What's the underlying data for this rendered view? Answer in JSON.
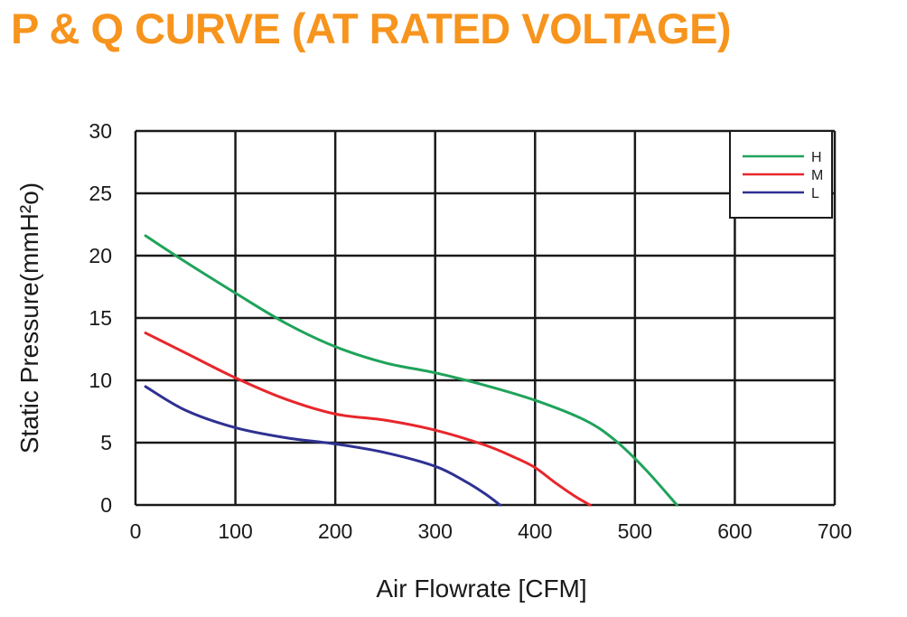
{
  "title": "P & Q CURVE (AT RATED VOLTAGE)",
  "colors": {
    "title": "#f7941d",
    "H": "#1fa35a",
    "M": "#e8262b",
    "L": "#2e3192"
  },
  "chart_data": {
    "type": "line",
    "xlabel": "Air Flowrate [CFM]",
    "ylabel": "Static Pressure(mmH²o)",
    "xlim": [
      0,
      700
    ],
    "ylim": [
      0,
      30
    ],
    "xticks": [
      0,
      100,
      200,
      300,
      400,
      500,
      600,
      700
    ],
    "yticks": [
      0,
      5,
      10,
      15,
      20,
      25,
      30
    ],
    "grid": true,
    "legend_position": "top-right",
    "series": [
      {
        "name": "H",
        "color": "#1fa35a",
        "x": [
          10,
          50,
          100,
          150,
          200,
          250,
          300,
          350,
          400,
          450,
          480,
          510,
          542
        ],
        "y": [
          21.6,
          19.5,
          17.0,
          14.6,
          12.7,
          11.4,
          10.6,
          9.6,
          8.4,
          6.8,
          5.2,
          2.9,
          0
        ]
      },
      {
        "name": "M",
        "color": "#e8262b",
        "x": [
          10,
          50,
          100,
          150,
          200,
          250,
          300,
          350,
          380,
          400,
          420,
          440,
          455
        ],
        "y": [
          13.8,
          12.2,
          10.2,
          8.5,
          7.3,
          6.8,
          6.0,
          4.8,
          3.8,
          3.0,
          1.8,
          0.7,
          0
        ]
      },
      {
        "name": "L",
        "color": "#2e3192",
        "x": [
          10,
          50,
          100,
          150,
          200,
          250,
          300,
          330,
          350,
          365
        ],
        "y": [
          9.5,
          7.6,
          6.2,
          5.4,
          4.9,
          4.2,
          3.1,
          1.9,
          0.9,
          0
        ]
      }
    ]
  }
}
